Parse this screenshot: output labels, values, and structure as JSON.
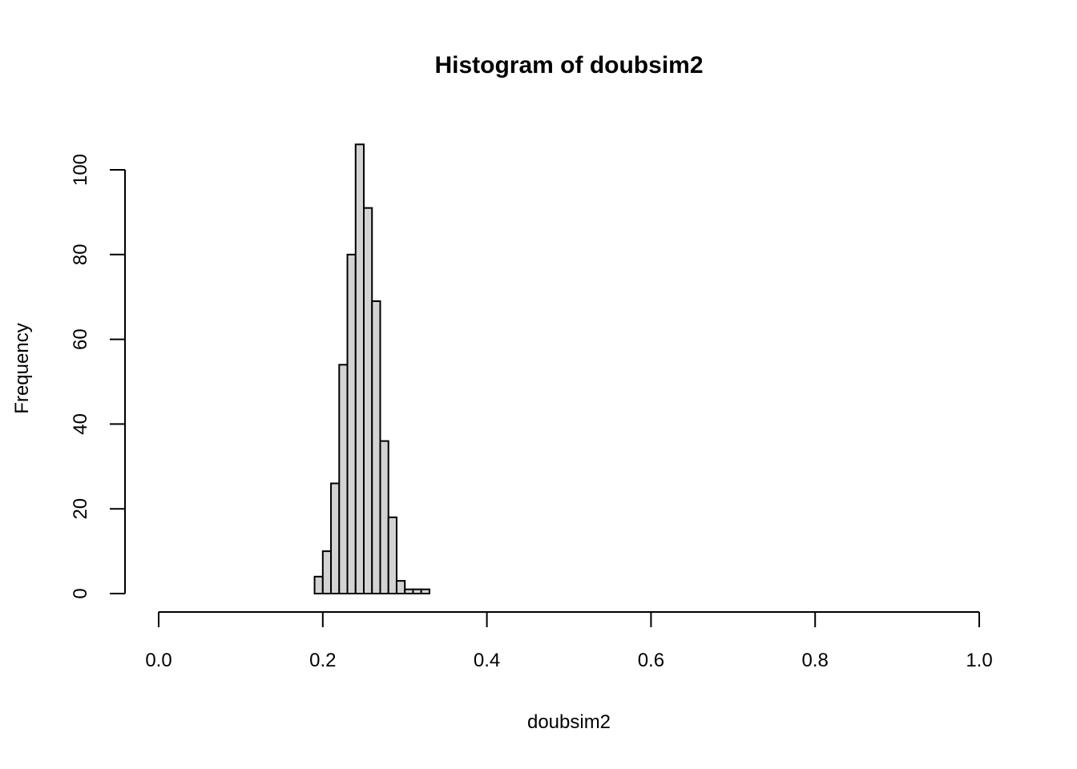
{
  "chart_data": {
    "type": "bar",
    "title": "Histogram of doubsim2",
    "xlabel": "doubsim2",
    "ylabel": "Frequency",
    "xlim": [
      0.0,
      1.0
    ],
    "ylim": [
      0,
      110
    ],
    "x_ticks": [
      "0.0",
      "0.2",
      "0.4",
      "0.6",
      "0.8",
      "1.0"
    ],
    "y_ticks": [
      "0",
      "20",
      "40",
      "60",
      "80",
      "100"
    ],
    "bin_width": 0.01,
    "bins": [
      0.19,
      0.2,
      0.21,
      0.22,
      0.23,
      0.24,
      0.25,
      0.26,
      0.27,
      0.28,
      0.29,
      0.3,
      0.31,
      0.32
    ],
    "values": [
      4,
      10,
      26,
      54,
      80,
      106,
      91,
      69,
      36,
      18,
      3,
      1,
      1,
      1
    ],
    "grid": false,
    "bar_color": "#d3d3d3",
    "line_color": "#000000"
  }
}
